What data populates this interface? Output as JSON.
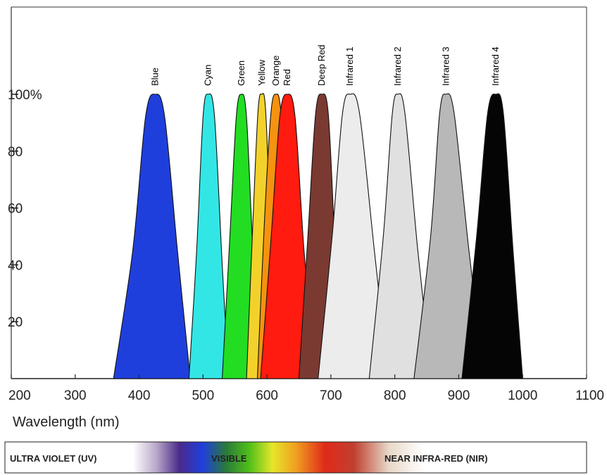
{
  "chart_data": {
    "type": "area",
    "title": "",
    "xlabel": "Wavelength (nm)",
    "ylabel": "",
    "xlim": [
      200,
      1100
    ],
    "ylim": [
      0,
      100
    ],
    "x_ticks": [
      "200",
      "300",
      "400",
      "500",
      "600",
      "700",
      "800",
      "900",
      "1000",
      "1100"
    ],
    "y_ticks": [
      "20",
      "40",
      "60",
      "80",
      "100%"
    ],
    "grid": false,
    "series": [
      {
        "name": "Blue",
        "color": "#1f3fdc",
        "x": [
          360,
          390,
          410,
          425,
          440,
          460,
          480
        ],
        "y": [
          0,
          45,
          92,
          100,
          92,
          45,
          0
        ]
      },
      {
        "name": "Cyan",
        "color": "#33e6e6",
        "x": [
          478,
          490,
          500,
          508,
          518,
          530,
          540
        ],
        "y": [
          0,
          45,
          92,
          100,
          92,
          40,
          0
        ]
      },
      {
        "name": "Green",
        "color": "#22dd22",
        "x": [
          530,
          542,
          552,
          560,
          568,
          578,
          590
        ],
        "y": [
          0,
          50,
          92,
          100,
          92,
          45,
          0
        ]
      },
      {
        "name": "Yellow",
        "color": "#f2d22a",
        "x": [
          568,
          578,
          586,
          592,
          598,
          606,
          616
        ],
        "y": [
          0,
          55,
          94,
          100,
          94,
          50,
          0
        ]
      },
      {
        "name": "Orange",
        "color": "#f59210",
        "x": [
          585,
          596,
          606,
          614,
          622,
          632,
          645
        ],
        "y": [
          0,
          55,
          93,
          100,
          93,
          50,
          0
        ]
      },
      {
        "name": "Red",
        "color": "#ff1b0f",
        "x": [
          590,
          606,
          620,
          632,
          644,
          658,
          675
        ],
        "y": [
          0,
          48,
          92,
          100,
          92,
          45,
          0
        ]
      },
      {
        "name": "Deep Red",
        "color": "#7a3a32",
        "x": [
          650,
          664,
          676,
          686,
          696,
          706,
          716
        ],
        "y": [
          0,
          50,
          93,
          100,
          93,
          48,
          0
        ]
      },
      {
        "name": "Infrared 1",
        "color": "#ececec",
        "x": [
          680,
          702,
          718,
          730,
          745,
          768,
          790
        ],
        "y": [
          0,
          50,
          93,
          100,
          93,
          45,
          0
        ]
      },
      {
        "name": "Infrared 2",
        "color": "#e0e0e0",
        "x": [
          760,
          782,
          796,
          805,
          816,
          836,
          858
        ],
        "y": [
          0,
          50,
          93,
          100,
          93,
          45,
          0
        ]
      },
      {
        "name": "Infrared 3",
        "color": "#b8b8b8",
        "x": [
          830,
          856,
          870,
          880,
          893,
          916,
          940
        ],
        "y": [
          0,
          50,
          93,
          100,
          93,
          45,
          0
        ]
      },
      {
        "name": "Infrared 4",
        "color": "#050505",
        "x": [
          905,
          928,
          945,
          958,
          970,
          985,
          1000
        ],
        "y": [
          0,
          50,
          93,
          100,
          93,
          45,
          0
        ]
      }
    ],
    "spectrum_bar": {
      "labels": [
        "ULTRA VIOLET (UV)",
        "VISIBLE",
        "NEAR INFRA-RED (NIR)"
      ]
    }
  }
}
